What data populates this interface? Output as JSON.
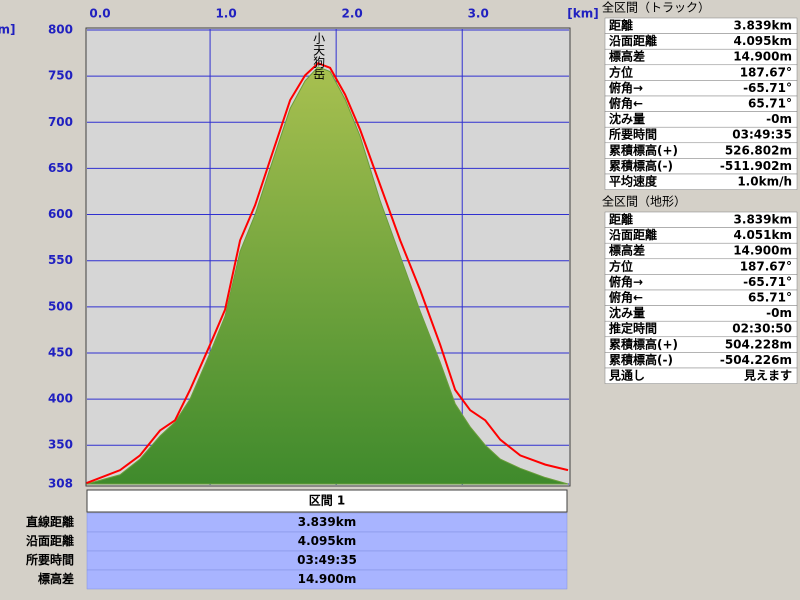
{
  "chart_data": {
    "type": "area",
    "x_unit": "[km]",
    "y_unit": "[m]",
    "annotation": "小天狗岳",
    "x": [
      0.02,
      0.286,
      0.444,
      0.603,
      0.722,
      0.841,
      1.0,
      1.119,
      1.238,
      1.357,
      1.476,
      1.635,
      1.754,
      1.857,
      1.952,
      2.071,
      2.19,
      2.349,
      2.508,
      2.667,
      2.825,
      2.944,
      3.063,
      3.183,
      3.302,
      3.46,
      3.659,
      3.839
    ],
    "series": [
      {
        "color": "#6a9e3a",
        "values": [
          308,
          318,
          335,
          360,
          375,
          400,
          450,
          490,
          560,
          600,
          650,
          715,
          745,
          760,
          755,
          725,
          685,
          615,
          555,
          495,
          440,
          395,
          370,
          350,
          335,
          325,
          315,
          308
        ]
      },
      {
        "color": "#ff0000",
        "values": [
          309,
          323,
          339,
          366,
          377,
          410,
          459,
          497,
          572,
          610,
          659,
          724,
          751,
          764,
          759,
          730,
          692,
          632,
          572,
          518,
          459,
          410,
          388,
          377,
          356,
          339,
          329,
          323
        ]
      }
    ],
    "xlim": [
      0,
      3.839
    ],
    "ylim": [
      308,
      800
    ],
    "xticks": [
      {
        "value": 0,
        "label": "0.0"
      },
      {
        "value": 1,
        "label": "1.0"
      },
      {
        "value": 2,
        "label": "2.0"
      },
      {
        "value": 3,
        "label": "3.0"
      }
    ],
    "yticks": [
      308,
      350,
      400,
      450,
      500,
      550,
      600,
      650,
      700,
      750,
      800
    ],
    "grid": true
  },
  "track": {
    "title": "全区間（トラック）",
    "rows": [
      [
        "距離",
        "3.839km"
      ],
      [
        "沿面距離",
        "4.095km"
      ],
      [
        "標高差",
        "14.900m"
      ],
      [
        "方位",
        "187.67°"
      ],
      [
        "俯角→",
        "-65.71°"
      ],
      [
        "俯角←",
        "65.71°"
      ],
      [
        "沈み量",
        "-0m"
      ],
      [
        "所要時間",
        "03:49:35"
      ],
      [
        "累積標高(+)",
        "526.802m"
      ],
      [
        "累積標高(-)",
        "-511.902m"
      ],
      [
        "平均速度",
        "1.0km/h"
      ]
    ]
  },
  "terrain": {
    "title": "全区間（地形）",
    "rows": [
      [
        "距離",
        "3.839km"
      ],
      [
        "沿面距離",
        "4.051km"
      ],
      [
        "標高差",
        "14.900m"
      ],
      [
        "方位",
        "187.67°"
      ],
      [
        "俯角→",
        "-65.71°"
      ],
      [
        "俯角←",
        "65.71°"
      ],
      [
        "沈み量",
        "-0m"
      ],
      [
        "推定時間",
        "02:30:50"
      ],
      [
        "累積標高(+)",
        "504.228m"
      ],
      [
        "累積標高(-)",
        "-504.226m"
      ],
      [
        "見通し",
        "見えます"
      ]
    ]
  },
  "section": {
    "title": "区間 1",
    "rows": [
      [
        "直線距離",
        "3.839km"
      ],
      [
        "沿面距離",
        "4.095km"
      ],
      [
        "所要時間",
        "03:49:35"
      ],
      [
        "標高差",
        "14.900m"
      ]
    ]
  }
}
